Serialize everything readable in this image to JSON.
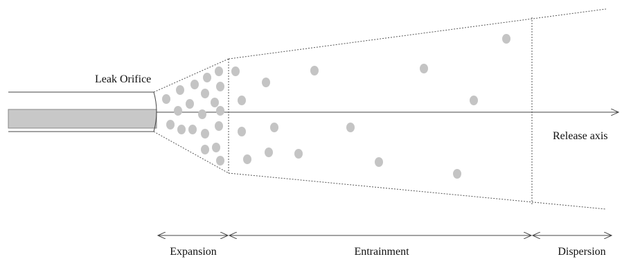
{
  "labels": {
    "orifice": "Leak Orifice",
    "axis": "Release axis"
  },
  "zones": [
    "Expansion",
    "Entrainment",
    "Dispersion"
  ]
}
